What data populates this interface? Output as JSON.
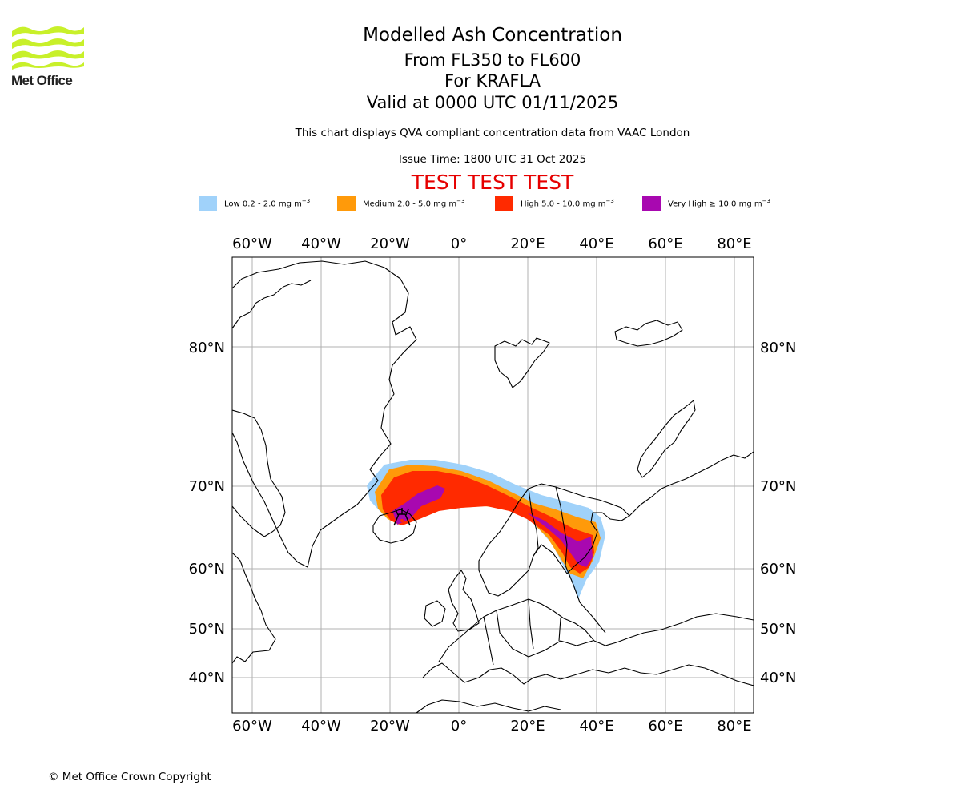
{
  "logo": {
    "text": "Met Office",
    "color": "#c8f02a"
  },
  "title": {
    "line1": "Modelled Ash Concentration",
    "line2": "From FL350 to FL600",
    "line3": "For KRAFLA",
    "line4": "Valid at 0000 UTC 01/11/2025"
  },
  "description": "This chart displays QVA compliant concentration data from VAAC London",
  "issue_time": "Issue Time: 1800 UTC 31 Oct 2025",
  "test_banner": "TEST TEST TEST",
  "legend": [
    {
      "label": "Low 0.2 - 2.0 mg m",
      "color": "#a0d2fa"
    },
    {
      "label": "Medium 2.0 - 5.0 mg m",
      "color": "#ff9a0a"
    },
    {
      "label": "High 5.0 - 10.0 mg m",
      "color": "#ff2a00"
    },
    {
      "label": "Very High ≥ 10.0 mg m",
      "color": "#a808b0"
    }
  ],
  "legend_unit_exponent": "−3",
  "map": {
    "lon_labels": [
      "60°W",
      "40°W",
      "20°W",
      "0°",
      "20°E",
      "40°E",
      "60°E",
      "80°E"
    ],
    "lat_labels": [
      "80°N",
      "70°N",
      "60°N",
      "50°N",
      "40°N"
    ],
    "volcano": "KRAFLA"
  },
  "copyright": "© Met Office Crown Copyright"
}
